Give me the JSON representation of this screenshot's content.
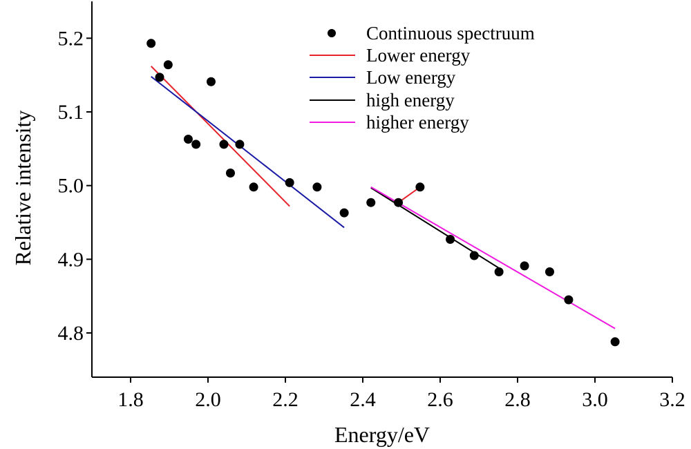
{
  "chart_data": {
    "type": "scatter",
    "xlabel": "Energy/eV",
    "ylabel": "Relative intensity",
    "xlim": [
      1.7,
      3.2
    ],
    "ylim": [
      4.74,
      5.25
    ],
    "x_ticks": [
      1.8,
      2.0,
      2.2,
      2.4,
      2.6,
      2.8,
      3.0,
      3.2
    ],
    "x_tick_labels": [
      "1.8",
      "2.0",
      "2.2",
      "2.4",
      "2.6",
      "2.8",
      "3.0",
      "3.2"
    ],
    "y_ticks": [
      4.8,
      4.9,
      5.0,
      5.1,
      5.2
    ],
    "y_tick_labels": [
      "4.8",
      "4.9",
      "5.0",
      "5.1",
      "5.2"
    ],
    "grid": false,
    "legend_position": "top-center",
    "points": {
      "name": "Continuous spectruum",
      "color": "#000000",
      "x": [
        1.853,
        1.875,
        1.897,
        1.949,
        1.969,
        2.008,
        2.041,
        2.058,
        2.082,
        2.118,
        2.211,
        2.282,
        2.352,
        2.421,
        2.492,
        2.548,
        2.626,
        2.688,
        2.752,
        2.818,
        2.883,
        2.932,
        3.052
      ],
      "y": [
        5.193,
        5.147,
        5.164,
        5.063,
        5.056,
        5.141,
        5.056,
        5.017,
        5.056,
        4.998,
        5.004,
        4.998,
        4.963,
        4.977,
        4.977,
        4.998,
        4.927,
        4.905,
        4.883,
        4.891,
        4.883,
        4.845,
        4.788
      ]
    },
    "lines": [
      {
        "name": "Lower energy",
        "color": "#e8222a",
        "segments": [
          [
            [
              1.853,
              5.162
            ],
            [
              2.211,
              4.972
            ]
          ],
          [
            [
              2.492,
              4.977
            ],
            [
              2.548,
              4.998
            ]
          ]
        ]
      },
      {
        "name": "Low energy",
        "color": "#1a1aa6",
        "segments": [
          [
            [
              1.853,
              5.148
            ],
            [
              2.352,
              4.943
            ]
          ]
        ]
      },
      {
        "name": "high energy",
        "color": "#000000",
        "segments": [
          [
            [
              2.421,
              4.997
            ],
            [
              2.752,
              4.888
            ]
          ]
        ]
      },
      {
        "name": "higher energy",
        "color": "#f01ae0",
        "segments": [
          [
            [
              2.421,
              4.998
            ],
            [
              3.052,
              4.806
            ]
          ]
        ]
      }
    ]
  }
}
